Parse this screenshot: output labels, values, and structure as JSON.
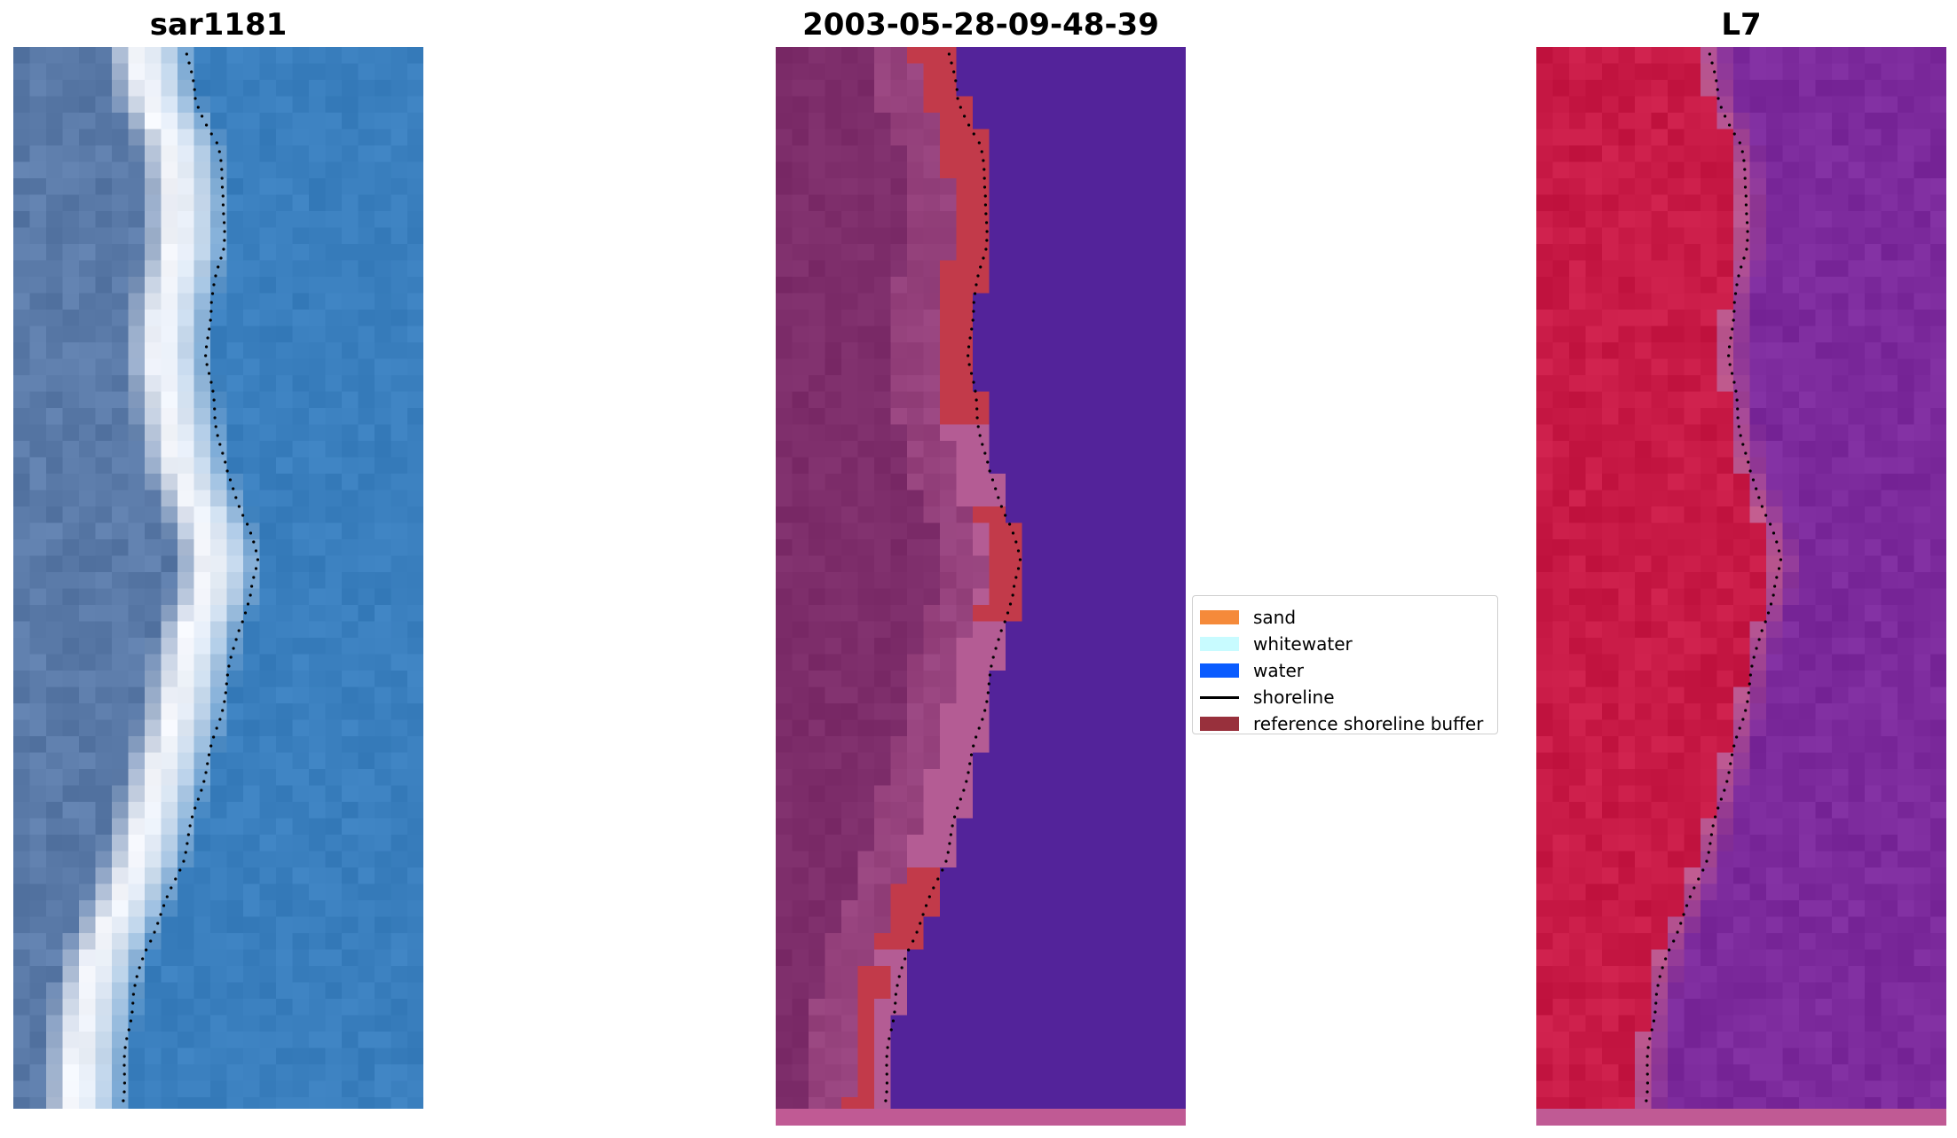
{
  "panels": [
    {
      "id": "sar",
      "title": "sar1181"
    },
    {
      "id": "class",
      "title": "2003-05-28-09-48-39"
    },
    {
      "id": "l7",
      "title": "L7"
    }
  ],
  "legend": {
    "items": [
      {
        "label": "sand",
        "color": "#f58a3a",
        "kind": "patch"
      },
      {
        "label": "whitewater",
        "color": "#c8fbff",
        "kind": "patch"
      },
      {
        "label": "water",
        "color": "#0a5cff",
        "kind": "patch"
      },
      {
        "label": "shoreline",
        "color": "#000000",
        "kind": "line"
      },
      {
        "label": "reference shoreline buffer",
        "color": "#98303c",
        "kind": "patch"
      }
    ]
  },
  "colors": {
    "sar_water": "#3a7fbe",
    "sar_land": "#5a7aa8",
    "sar_whitewater": "#f4f6fb",
    "class_water": "#53239a",
    "class_land": "#7d2d6a",
    "class_sand_edge": "#b45c94",
    "class_buffer": "#c23a4a",
    "l7_land": "#c81a46",
    "l7_water": "#7c2a9c",
    "l7_edge": "#c05a8c",
    "bottom_strip": "#c05a94"
  }
}
